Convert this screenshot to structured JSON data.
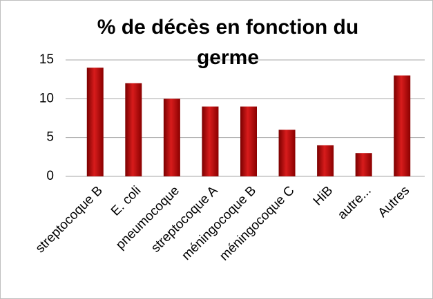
{
  "chart_data": {
    "type": "bar",
    "title": "% de décès en fonction du germe",
    "categories": [
      "streptocoque B",
      "E. coli",
      "pneumocoque",
      "streptocoque A",
      "méningocoque B",
      "méningocoque C",
      "HiB",
      "autre...",
      "Autres"
    ],
    "values": [
      14,
      12,
      10,
      9,
      9,
      6,
      4,
      3,
      13
    ],
    "color": "#c00000",
    "ylim": [
      0,
      15
    ],
    "yticks": [
      0,
      5,
      10,
      15
    ],
    "grid": true
  }
}
